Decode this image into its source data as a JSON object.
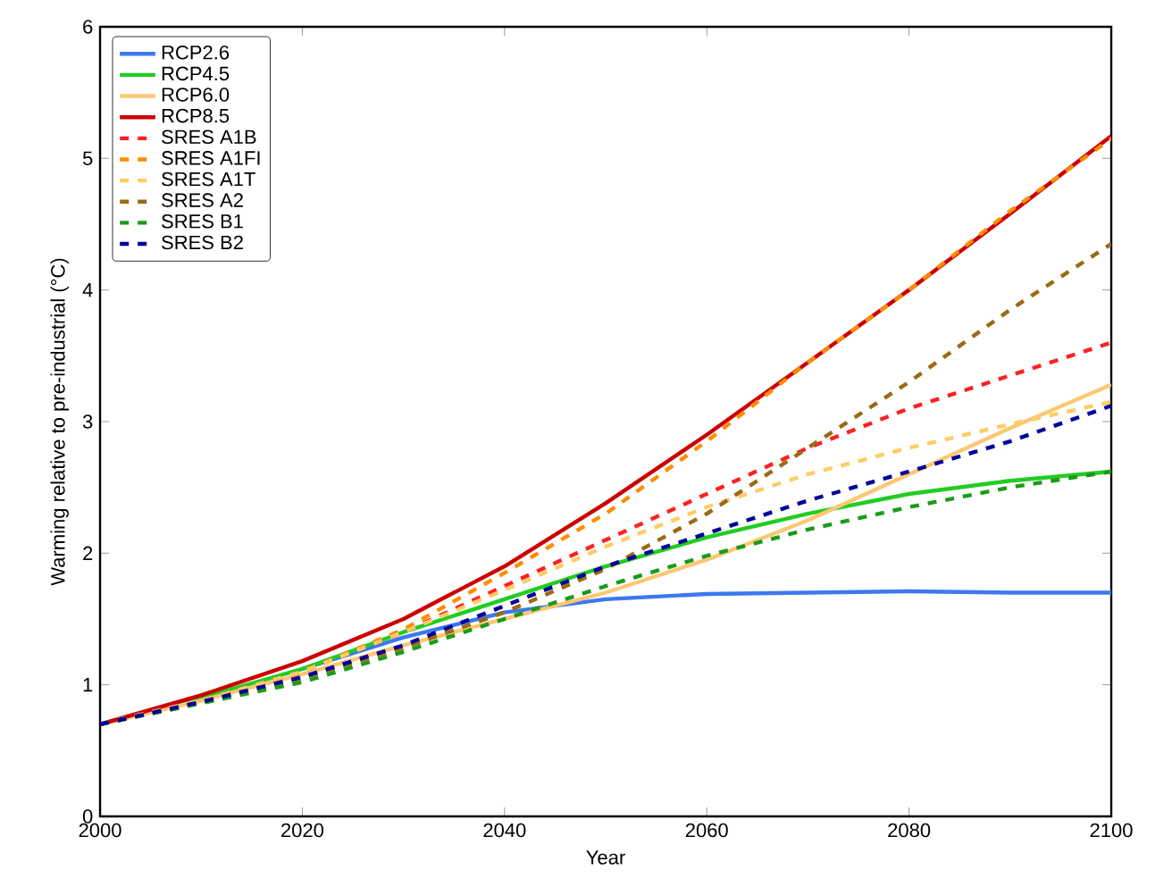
{
  "chart_data": {
    "type": "line",
    "xlabel": "Year",
    "ylabel": "Warming relative to pre-industrial (°C)",
    "x": [
      2000,
      2010,
      2020,
      2030,
      2040,
      2050,
      2060,
      2070,
      2080,
      2090,
      2100
    ],
    "series": [
      {
        "name": "RCP2.6",
        "color": "#3d78f0",
        "line_style": "solid",
        "values": [
          null,
          null,
          1.12,
          1.36,
          1.55,
          1.65,
          1.69,
          1.7,
          1.71,
          1.7,
          1.7
        ]
      },
      {
        "name": "RCP4.5",
        "color": "#22cc22",
        "line_style": "solid",
        "values": [
          0.7,
          0.9,
          1.12,
          1.4,
          1.65,
          1.9,
          2.12,
          2.3,
          2.45,
          2.55,
          2.62
        ]
      },
      {
        "name": "RCP6.0",
        "color": "#fdc773",
        "line_style": "solid",
        "values": [
          0.7,
          0.88,
          1.08,
          1.3,
          1.5,
          1.7,
          1.95,
          2.25,
          2.6,
          2.95,
          3.28
        ]
      },
      {
        "name": "RCP8.5",
        "color": "#cc0000",
        "line_style": "solid",
        "values": [
          0.7,
          0.92,
          1.18,
          1.5,
          1.9,
          2.38,
          2.9,
          3.45,
          4.0,
          4.58,
          5.17
        ]
      },
      {
        "name": "SRES A1B",
        "color": "#ff2020",
        "line_style": "dashed",
        "values": [
          0.7,
          0.88,
          1.1,
          1.4,
          1.75,
          2.1,
          2.45,
          2.8,
          3.1,
          3.35,
          3.6
        ]
      },
      {
        "name": "SRES A1FI",
        "color": "#ff8c00",
        "line_style": "dashed",
        "values": [
          0.7,
          0.88,
          1.1,
          1.42,
          1.85,
          2.3,
          2.85,
          3.45,
          4.0,
          4.6,
          5.15
        ]
      },
      {
        "name": "SRES A1T",
        "color": "#ffcc66",
        "line_style": "dashed",
        "values": [
          0.7,
          0.88,
          1.1,
          1.4,
          1.72,
          2.05,
          2.35,
          2.6,
          2.8,
          2.98,
          3.15
        ]
      },
      {
        "name": "SRES A2",
        "color": "#9b6a14",
        "line_style": "dashed",
        "values": [
          0.7,
          0.86,
          1.05,
          1.28,
          1.55,
          1.88,
          2.3,
          2.8,
          3.3,
          3.85,
          4.35
        ]
      },
      {
        "name": "SRES B1",
        "color": "#1a9a1a",
        "line_style": "dashed",
        "values": [
          0.7,
          0.86,
          1.02,
          1.25,
          1.5,
          1.75,
          1.98,
          2.18,
          2.35,
          2.5,
          2.62
        ]
      },
      {
        "name": "SRES B2",
        "color": "#000099",
        "line_style": "dashed",
        "values": [
          0.7,
          0.87,
          1.06,
          1.3,
          1.6,
          1.9,
          2.15,
          2.4,
          2.62,
          2.85,
          3.12
        ]
      }
    ],
    "xlim": [
      2000,
      2100
    ],
    "ylim": [
      0,
      6
    ],
    "xticks": [
      2000,
      2020,
      2040,
      2060,
      2080,
      2100
    ],
    "yticks": [
      0,
      1,
      2,
      3,
      4,
      5,
      6
    ],
    "grid": false,
    "legend": "top left",
    "marker": "none"
  }
}
